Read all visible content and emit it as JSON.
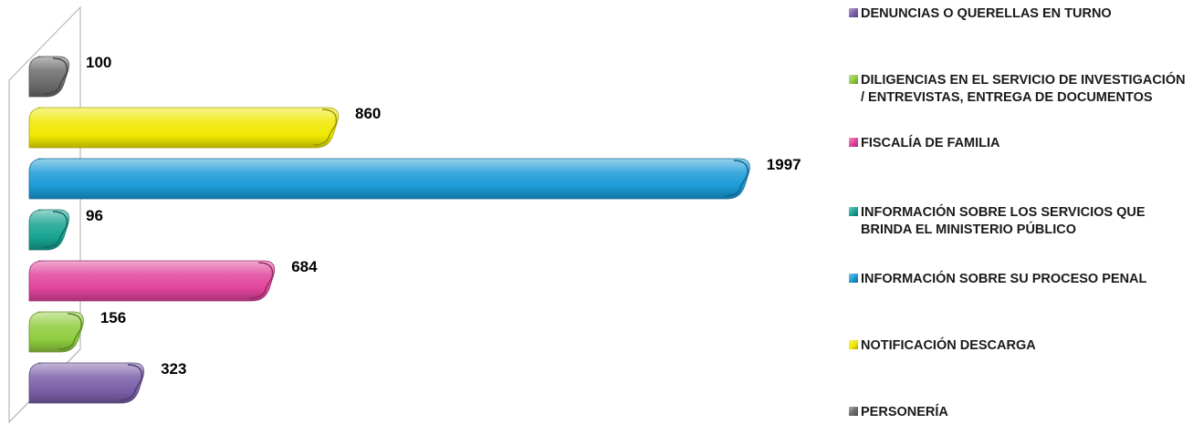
{
  "chart_data": {
    "type": "bar",
    "orientation": "horizontal",
    "title": "",
    "xlabel": "",
    "ylabel": "",
    "xlim": [
      0,
      2000
    ],
    "grid": false,
    "legend_position": "right",
    "data_labels": true,
    "categories": [
      "DENUNCIAS O QUERELLAS EN TURNO",
      "DILIGENCIAS EN EL SERVICIO DE INVESTIGACIÓN / ENTREVISTAS, ENTREGA DE DOCUMENTOS",
      "FISCALÍA DE FAMILIA",
      "INFORMACIÓN SOBRE LOS SERVICIOS QUE BRINDA EL MINISTERIO PÚBLICO",
      "INFORMACIÓN SOBRE SU PROCESO PENAL",
      "NOTIFICACIÓN DESCARGA",
      "PERSONERÍA"
    ],
    "values": [
      323,
      156,
      684,
      96,
      1997,
      860,
      100
    ],
    "labels": [
      "323",
      "156",
      "684",
      "96",
      "1997",
      "860",
      "100"
    ],
    "colors": [
      "#7a5fa8",
      "#8fcc3e",
      "#e0439b",
      "#17a392",
      "#1a9ad6",
      "#f0e800",
      "#6b6b6b"
    ]
  }
}
